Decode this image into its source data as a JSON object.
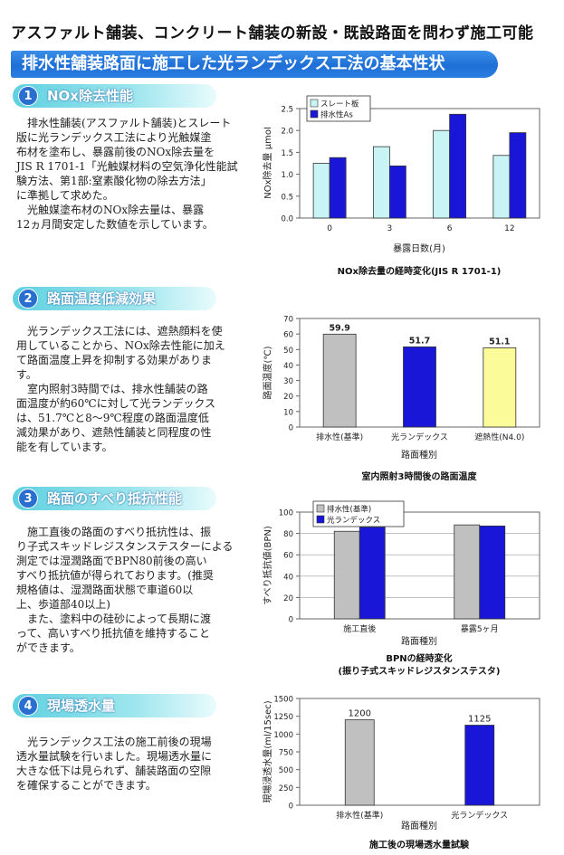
{
  "headline": "アスファルト舗装、コンクリート舗装の新設・既設路面を問わず施工可能",
  "banner": "排水性舗装路面に施工した光ランデックス工法の基本性状",
  "sections": [
    {
      "num": "1",
      "title": "NOx除去性能",
      "text": "　排水性舗装(アスファルト舗装)とスレート\n版に光ランデックス工法により光触媒塗\n布材を塗布し、暴露前後のNOx除去量を\nJIS R 1701-1「光触媒材料の空気浄化性能試\n験方法、第1部:窒素酸化物の除去方法」\nに準拠して求めた。\n　光触媒塗布材のNOx除去量は、暴露\n12ヵ月間安定した数値を示しています。"
    },
    {
      "num": "2",
      "title": "路面温度低減効果",
      "text": "　光ランデックス工法には、遮熱顔料を使\n用していることから、NOx除去性能に加え\nて路面温度上昇を抑制する効果がありま\nす。\n　室内照射3時間では、排水性舗装の路\n面温度が約60℃に対して光ランデックス\nは、51.7℃と8～9℃程度の路面温度低\n減効果があり、遮熱性舗装と同程度の性\n能を有しています。"
    },
    {
      "num": "3",
      "title": "路面のすべり抵抗性能",
      "text": "　施工直後の路面のすべり抵抗性は、振\nり子式スキッドレジスタンステスターによる\n測定では湿潤路面でBPN80前後の高い\nすべり抵抗値が得られております。(推奨\n規格値は、湿潤路面状態で車道60以\n上、歩道部40以上)\n　また、塗料中の硅砂によって長期に渡\nって、高いすべり抵抗値を維持すること\nができます。"
    },
    {
      "num": "4",
      "title": "現場透水量",
      "text": "　光ランデックス工法の施工前後の現場\n透水量試験を行いました。現場透水量に\n大きな低下は見られず、舗装路面の空隙\nを確保することができます。"
    }
  ],
  "chart_data": [
    {
      "type": "bar",
      "title": "NOx除去量の経時変化(JIS R 1701-1)",
      "xlabel": "暴露日数(月)",
      "ylabel": "NOx除去量 μmol",
      "categories": [
        "0",
        "3",
        "6",
        "12"
      ],
      "ylim": [
        0,
        2.5
      ],
      "yticks": [
        "0.0",
        "0.5",
        "1.0",
        "1.5",
        "2.0",
        "2.5"
      ],
      "legend_position": "top-left",
      "series": [
        {
          "name": "スレート板",
          "color": "#c8f4f6",
          "values": [
            1.25,
            1.63,
            2.0,
            1.43
          ]
        },
        {
          "name": "排水性As",
          "color": "#1a16d8",
          "values": [
            1.38,
            1.19,
            2.37,
            1.95
          ]
        }
      ]
    },
    {
      "type": "bar",
      "title": "室内照射3時間後の路面温度",
      "xlabel": "路面種別",
      "ylabel": "路面温度(℃)",
      "categories": [
        "排水性(基準)",
        "光ランデックス",
        "遮熱性(N4.0)"
      ],
      "ylim": [
        0,
        70
      ],
      "yticks": [
        "0",
        "10",
        "20",
        "30",
        "40",
        "50",
        "60",
        "70"
      ],
      "values": [
        59.9,
        51.7,
        51.1
      ],
      "value_labels": [
        "59.9",
        "51.7",
        "51.1"
      ],
      "colors": [
        "#c0c0c0",
        "#1a16d8",
        "#fbfb9a"
      ]
    },
    {
      "type": "bar",
      "title": "BPNの経時変化",
      "subtitle": "(振り子式スキッドレジスタンステスタ)",
      "xlabel": "路面種別",
      "ylabel": "すべり抵抗値(BPN)",
      "categories": [
        "施工直後",
        "暴露5ヶ月"
      ],
      "ylim": [
        0,
        100
      ],
      "yticks": [
        "0",
        "20",
        "40",
        "60",
        "80",
        "100"
      ],
      "legend_position": "top-left",
      "series": [
        {
          "name": "排水性(基準)",
          "color": "#c0c0c0",
          "values": [
            82,
            88
          ]
        },
        {
          "name": "光ランデックス",
          "color": "#1a16d8",
          "values": [
            86,
            87
          ]
        }
      ]
    },
    {
      "type": "bar",
      "title": "施工後の現場透水量試験",
      "xlabel": "路面種別",
      "ylabel": "現場浸透水量(ml/15sec)",
      "categories": [
        "排水性(基準)",
        "光ランデックス"
      ],
      "ylim": [
        0,
        1500
      ],
      "yticks": [
        "0",
        "250",
        "500",
        "750",
        "1000",
        "1250",
        "1500"
      ],
      "values": [
        1200,
        1125
      ],
      "value_labels": [
        "1200",
        "1125"
      ],
      "colors": [
        "#c0c0c0",
        "#1a16d8"
      ]
    }
  ]
}
